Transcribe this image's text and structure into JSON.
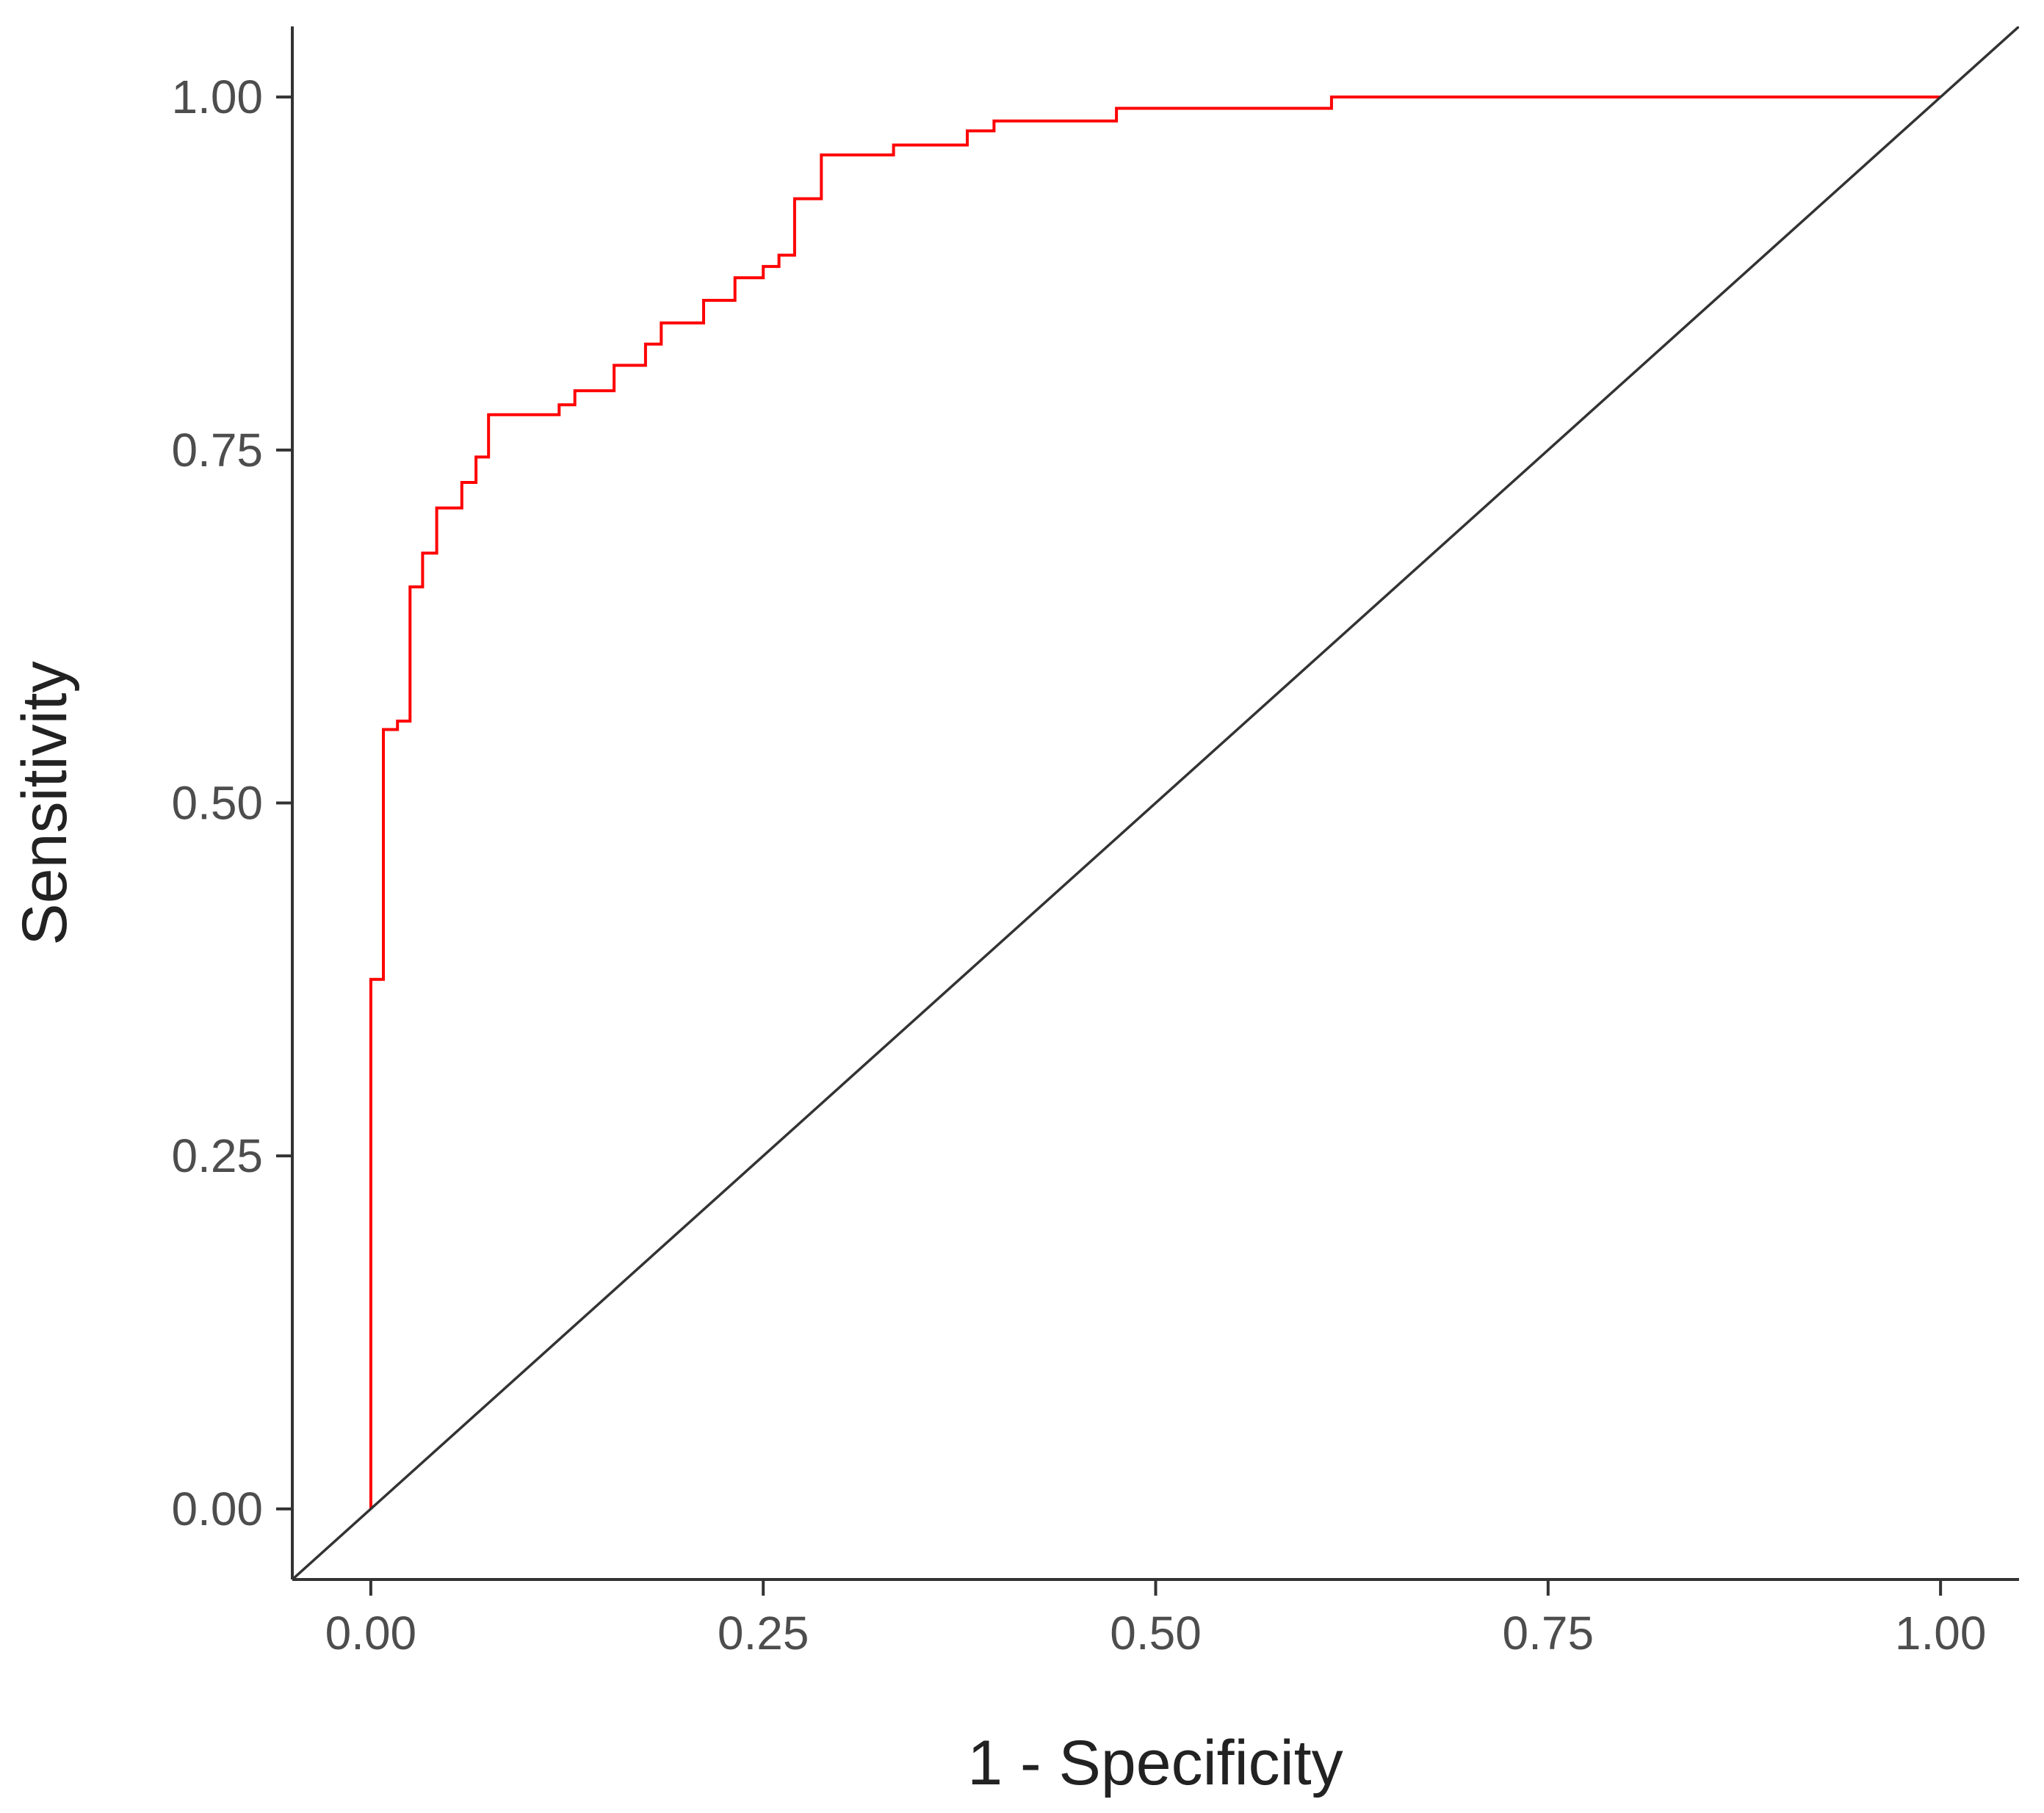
{
  "chart_data": {
    "type": "line",
    "title": "",
    "xlabel": "1 - Specificity",
    "ylabel": "Sensitivity",
    "xlim": [
      -0.05,
      1.05
    ],
    "ylim": [
      -0.05,
      1.05
    ],
    "x_ticks": [
      "0.00",
      "0.25",
      "0.50",
      "0.75",
      "1.00"
    ],
    "y_ticks": [
      "0.00",
      "0.25",
      "0.50",
      "0.75",
      "1.00"
    ],
    "grid": false,
    "legend": "none",
    "series": [
      {
        "style": "step",
        "color": "#ff0000",
        "x": [
          0.0,
          0.0,
          0.008,
          0.008,
          0.017,
          0.017,
          0.025,
          0.025,
          0.033,
          0.033,
          0.042,
          0.042,
          0.058,
          0.058,
          0.067,
          0.067,
          0.075,
          0.075,
          0.083,
          0.083,
          0.12,
          0.12,
          0.13,
          0.13,
          0.155,
          0.155,
          0.175,
          0.175,
          0.185,
          0.185,
          0.212,
          0.212,
          0.232,
          0.232,
          0.25,
          0.25,
          0.26,
          0.26,
          0.27,
          0.27,
          0.287,
          0.287,
          0.333,
          0.333,
          0.38,
          0.38,
          0.397,
          0.397,
          0.475,
          0.475,
          0.612,
          0.612,
          1.0
        ],
        "y": [
          0.0,
          0.375,
          0.375,
          0.552,
          0.552,
          0.558,
          0.558,
          0.653,
          0.653,
          0.677,
          0.677,
          0.709,
          0.709,
          0.727,
          0.727,
          0.745,
          0.745,
          0.775,
          0.775,
          0.775,
          0.775,
          0.782,
          0.782,
          0.792,
          0.792,
          0.81,
          0.81,
          0.825,
          0.825,
          0.84,
          0.84,
          0.856,
          0.856,
          0.872,
          0.872,
          0.88,
          0.88,
          0.888,
          0.888,
          0.928,
          0.928,
          0.959,
          0.959,
          0.966,
          0.966,
          0.976,
          0.976,
          0.983,
          0.983,
          0.992,
          0.992,
          1.0,
          1.0
        ]
      },
      {
        "style": "line",
        "color": "#333333",
        "x": [
          -0.05,
          1.05
        ],
        "y": [
          -0.05,
          1.05
        ]
      }
    ]
  }
}
